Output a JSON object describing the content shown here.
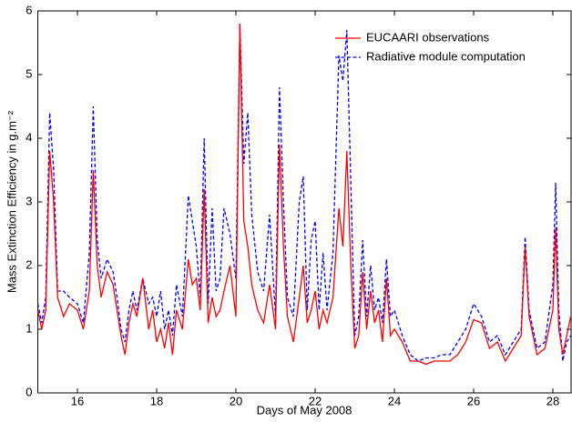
{
  "chart_data": {
    "type": "line",
    "xlabel": "Days of May 2008",
    "ylabel": "Mass Extinction Efficiency in g.m⁻²",
    "x": [
      15.0,
      15.1,
      15.2,
      15.3,
      15.4,
      15.5,
      15.65,
      15.8,
      16.0,
      16.15,
      16.3,
      16.4,
      16.5,
      16.6,
      16.75,
      16.9,
      17.0,
      17.1,
      17.2,
      17.3,
      17.4,
      17.5,
      17.65,
      17.8,
      17.9,
      18.0,
      18.1,
      18.2,
      18.3,
      18.4,
      18.5,
      18.65,
      18.8,
      18.9,
      19.0,
      19.1,
      19.2,
      19.3,
      19.4,
      19.5,
      19.6,
      19.7,
      19.85,
      20.0,
      20.1,
      20.2,
      20.3,
      20.4,
      20.55,
      20.7,
      20.85,
      21.0,
      21.1,
      21.2,
      21.3,
      21.45,
      21.6,
      21.7,
      21.8,
      21.9,
      22.0,
      22.1,
      22.2,
      22.3,
      22.45,
      22.6,
      22.7,
      22.8,
      22.9,
      23.0,
      23.1,
      23.2,
      23.3,
      23.4,
      23.5,
      23.6,
      23.7,
      23.8,
      23.9,
      24.0,
      24.2,
      24.4,
      24.6,
      24.8,
      25.0,
      25.2,
      25.4,
      25.6,
      25.8,
      26.0,
      26.2,
      26.4,
      26.6,
      26.8,
      27.0,
      27.2,
      27.3,
      27.4,
      27.6,
      27.8,
      28.0,
      28.07,
      28.15,
      28.25,
      28.35,
      28.45
    ],
    "series": [
      {
        "name": "EUCAARI observations",
        "color": "#ff0000",
        "dash": false,
        "values": [
          1.3,
          1.0,
          1.3,
          3.8,
          3.0,
          1.5,
          1.2,
          1.4,
          1.3,
          1.0,
          1.6,
          3.5,
          2.0,
          1.5,
          1.9,
          1.7,
          1.3,
          0.9,
          0.6,
          1.1,
          1.4,
          1.2,
          1.8,
          1.0,
          1.3,
          0.8,
          1.0,
          0.7,
          1.1,
          0.6,
          1.3,
          1.0,
          2.1,
          1.7,
          1.8,
          1.3,
          3.2,
          1.1,
          1.5,
          1.2,
          1.3,
          1.6,
          2.0,
          1.2,
          5.8,
          2.7,
          2.3,
          1.7,
          1.3,
          1.1,
          1.7,
          1.0,
          3.9,
          2.3,
          1.2,
          0.8,
          1.5,
          2.0,
          1.1,
          1.3,
          1.6,
          1.0,
          1.3,
          1.1,
          1.5,
          2.9,
          2.3,
          3.8,
          2.0,
          0.7,
          0.9,
          1.9,
          1.0,
          1.6,
          1.1,
          1.3,
          0.8,
          1.8,
          0.9,
          1.0,
          0.8,
          0.5,
          0.5,
          0.45,
          0.5,
          0.5,
          0.5,
          0.6,
          0.8,
          1.15,
          1.1,
          0.7,
          0.8,
          0.5,
          0.7,
          0.9,
          2.3,
          1.2,
          0.6,
          0.7,
          1.3,
          2.6,
          1.0,
          0.6,
          0.9,
          1.2
        ]
      },
      {
        "name": "Radiative module computation",
        "color": "#0000ff",
        "dash": true,
        "values": [
          1.4,
          1.1,
          1.5,
          4.4,
          3.5,
          1.6,
          1.6,
          1.5,
          1.4,
          1.1,
          2.2,
          4.5,
          2.4,
          1.8,
          2.1,
          1.9,
          1.5,
          1.0,
          0.8,
          1.3,
          1.6,
          1.3,
          1.8,
          1.4,
          1.5,
          1.2,
          1.6,
          1.0,
          1.3,
          0.9,
          1.7,
          1.2,
          3.1,
          2.7,
          2.3,
          1.5,
          4.0,
          1.4,
          2.9,
          1.6,
          1.8,
          2.9,
          2.5,
          1.8,
          5.8,
          3.6,
          4.4,
          2.8,
          1.9,
          1.6,
          2.8,
          1.2,
          4.8,
          3.0,
          1.5,
          1.2,
          3.0,
          3.4,
          1.3,
          2.4,
          2.7,
          1.3,
          2.2,
          1.3,
          2.2,
          5.3,
          4.9,
          5.7,
          3.3,
          0.9,
          1.2,
          2.4,
          1.2,
          2.0,
          1.3,
          1.5,
          1.1,
          2.1,
          1.2,
          1.3,
          0.9,
          0.6,
          0.5,
          0.55,
          0.55,
          0.6,
          0.6,
          0.8,
          1.0,
          1.4,
          1.2,
          0.8,
          0.9,
          0.6,
          0.8,
          1.0,
          2.45,
          1.3,
          0.7,
          0.8,
          1.7,
          3.3,
          1.3,
          0.5,
          0.8,
          0.9
        ]
      }
    ],
    "xlim": [
      15,
      28.46
    ],
    "xticks": [
      16,
      18,
      20,
      22,
      24,
      26,
      28
    ],
    "ylim": [
      0,
      6
    ],
    "yticks": [
      0,
      1,
      2,
      3,
      4,
      5,
      6
    ],
    "grid": false,
    "legend": "upper right"
  }
}
